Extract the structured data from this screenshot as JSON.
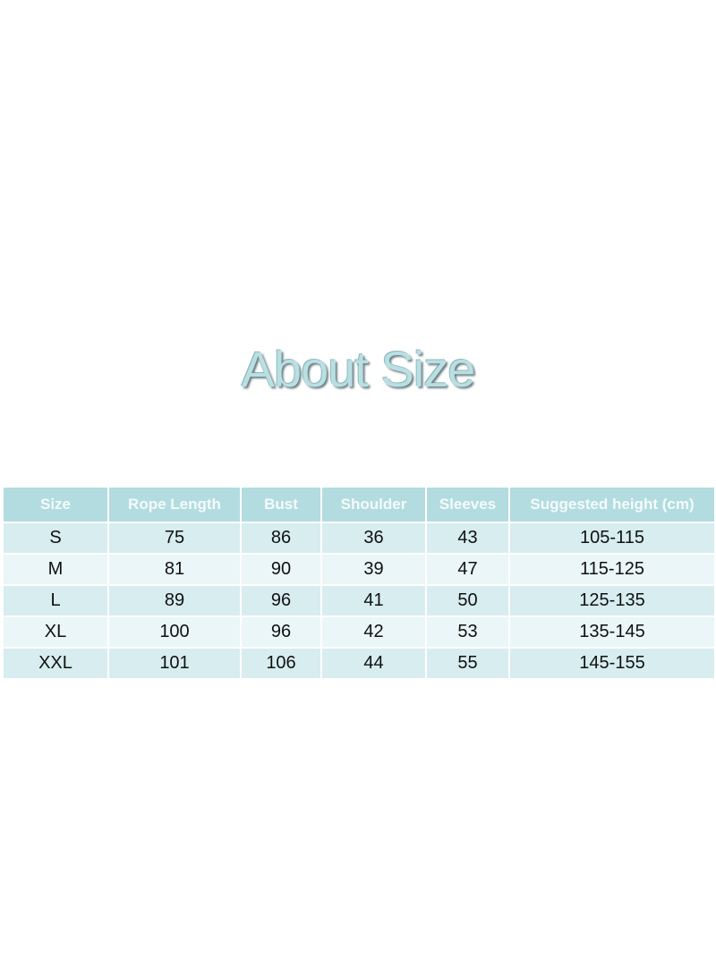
{
  "title": "About Size",
  "table": {
    "headers": [
      "Size",
      "Rope Length",
      "Bust",
      "Shoulder",
      "Sleeves",
      "Suggested height (cm)"
    ],
    "rows": [
      [
        "S",
        "75",
        "86",
        "36",
        "43",
        "105-115"
      ],
      [
        "M",
        "81",
        "90",
        "39",
        "47",
        "115-125"
      ],
      [
        "L",
        "89",
        "96",
        "41",
        "50",
        "125-135"
      ],
      [
        "XL",
        "100",
        "96",
        "42",
        "53",
        "135-145"
      ],
      [
        "XXL",
        "101",
        "106",
        "44",
        "55",
        "145-155"
      ]
    ]
  }
}
